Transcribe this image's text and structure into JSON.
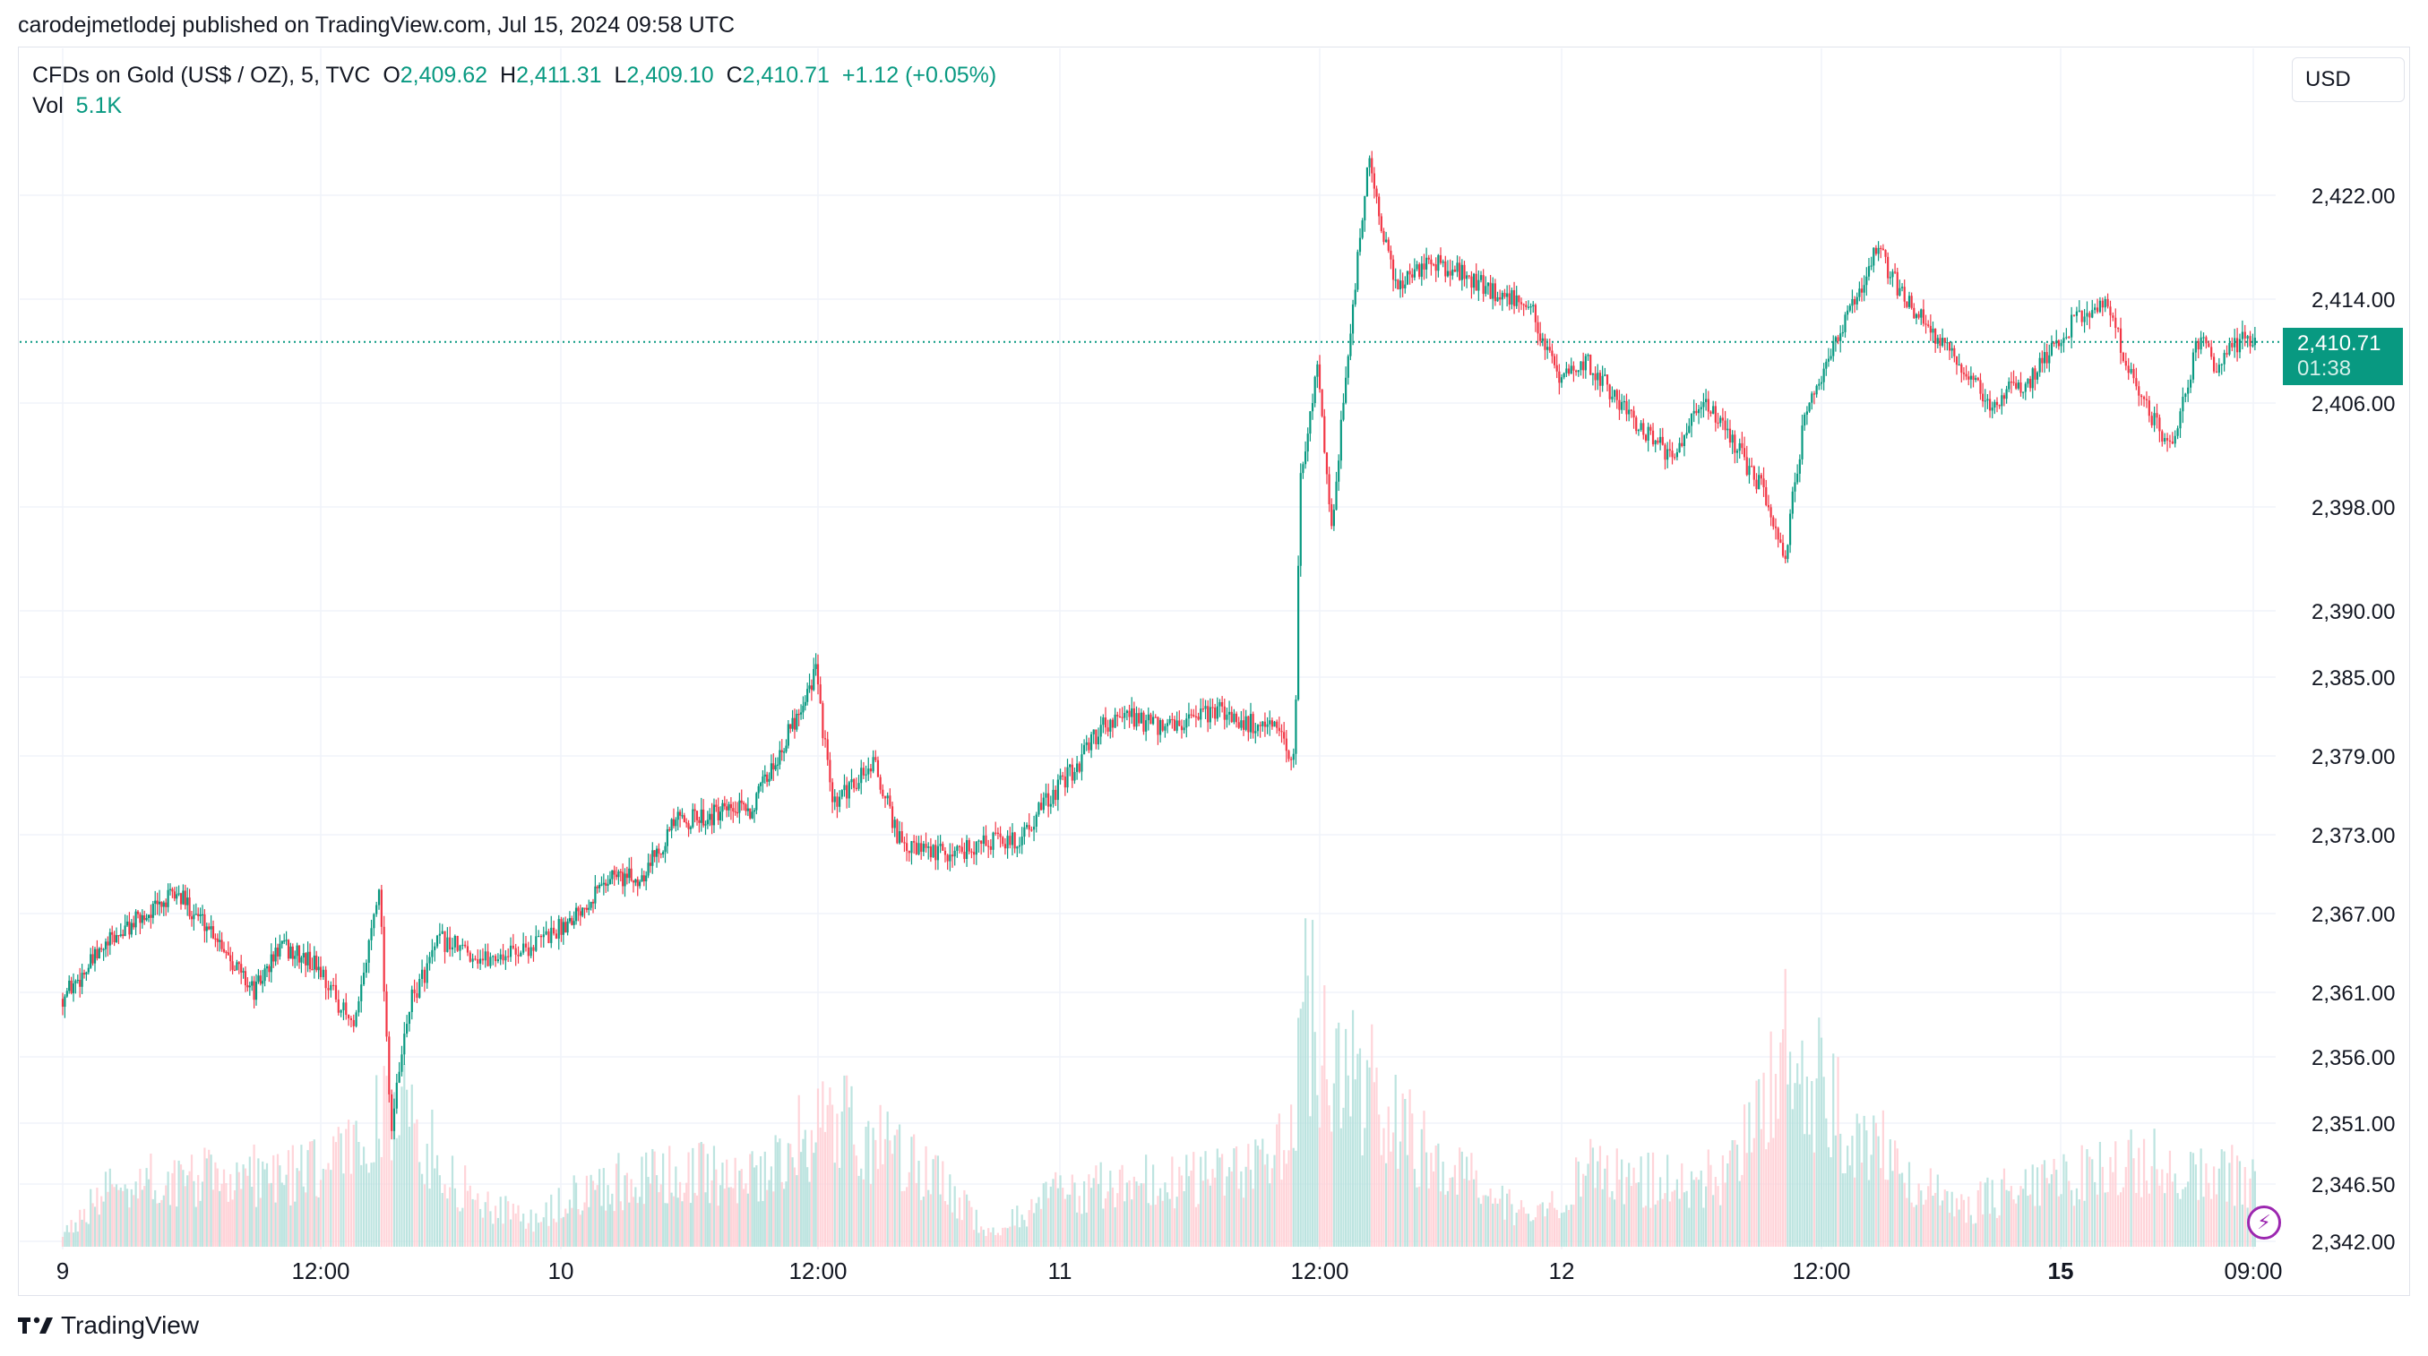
{
  "publisher": "carodejmetlodej published on TradingView.com, Jul 15, 2024 09:58 UTC",
  "legend": {
    "symbol": "CFDs on Gold (US$ / OZ), 5, TVC",
    "open_label": "O",
    "open": "2,409.62",
    "high_label": "H",
    "high": "2,411.31",
    "low_label": "L",
    "low": "2,409.10",
    "close_label": "C",
    "close": "2,410.71",
    "change": "+1.12 (+0.05%)",
    "vol_label": "Vol",
    "vol": "5.1K"
  },
  "currency": "USD",
  "price_badge": {
    "price": "2,410.71",
    "countdown": "01:38"
  },
  "brand": "TradingView",
  "colors": {
    "up": "#089981",
    "down": "#f23645",
    "vol_up": "#b2dfdb",
    "vol_down": "#ffcdd2",
    "grid": "#f0f3fa"
  },
  "chart_data": {
    "type": "candlestick",
    "symbol": "CFDs on Gold (US$ / OZ)",
    "interval": "5",
    "y_ticks": [
      "2,422.00",
      "2,414.00",
      "2,406.00",
      "2,398.00",
      "2,390.00",
      "2,385.00",
      "2,379.00",
      "2,373.00",
      "2,367.00",
      "2,361.00",
      "2,356.00",
      "2,351.00",
      "2,346.50",
      "2,342.00"
    ],
    "x_ticks": [
      {
        "label": "9",
        "bold": false
      },
      {
        "label": "12:00",
        "bold": false
      },
      {
        "label": "10",
        "bold": false
      },
      {
        "label": "12:00",
        "bold": false
      },
      {
        "label": "11",
        "bold": false
      },
      {
        "label": "12:00",
        "bold": false
      },
      {
        "label": "12",
        "bold": false
      },
      {
        "label": "12:00",
        "bold": false
      },
      {
        "label": "15",
        "bold": true
      },
      {
        "label": "09:00",
        "bold": false
      }
    ],
    "last_price": 2410.71,
    "price_path": [
      [
        0,
        2360.5
      ],
      [
        2,
        2365.0
      ],
      [
        3,
        2366.5
      ],
      [
        4.5,
        2368.5
      ],
      [
        6,
        2365.5
      ],
      [
        7.5,
        2361.0
      ],
      [
        8.5,
        2364.5
      ],
      [
        10,
        2363.0
      ],
      [
        11.2,
        2358.0
      ],
      [
        12,
        2369.5
      ],
      [
        12.4,
        2350.5
      ],
      [
        13,
        2360.0
      ],
      [
        14,
        2365.0
      ],
      [
        15.5,
        2363.5
      ],
      [
        17,
        2364.5
      ],
      [
        18,
        2366.0
      ],
      [
        19,
        2368.0
      ],
      [
        20,
        2370.0
      ],
      [
        21,
        2369.5
      ],
      [
        22.5,
        2374.0
      ],
      [
        24,
        2374.5
      ],
      [
        25.5,
        2375.0
      ],
      [
        27,
        2381.0
      ],
      [
        28,
        2385.5
      ],
      [
        28.6,
        2375.0
      ],
      [
        30,
        2378.5
      ],
      [
        31,
        2372.0
      ],
      [
        32.5,
        2371.5
      ],
      [
        34,
        2372.5
      ],
      [
        35,
        2372.5
      ],
      [
        36,
        2375.5
      ],
      [
        37,
        2378.0
      ],
      [
        38,
        2381.5
      ],
      [
        39,
        2382.0
      ],
      [
        40,
        2381.0
      ],
      [
        41,
        2381.5
      ],
      [
        42,
        2382.5
      ],
      [
        43,
        2381.5
      ],
      [
        44,
        2381.0
      ],
      [
        44.7,
        2378.5
      ],
      [
        44.9,
        2400.0
      ],
      [
        45.5,
        2409.0
      ],
      [
        46,
        2396.5
      ],
      [
        46.5,
        2408.0
      ],
      [
        47.3,
        2425.0
      ],
      [
        48.2,
        2415.0
      ],
      [
        49.5,
        2417.0
      ],
      [
        50.5,
        2416.0
      ],
      [
        51.8,
        2414.5
      ],
      [
        53,
        2413.5
      ],
      [
        54,
        2407.5
      ],
      [
        55,
        2409.0
      ],
      [
        56.5,
        2405.0
      ],
      [
        58,
        2401.5
      ],
      [
        59,
        2406.5
      ],
      [
        60,
        2403.0
      ],
      [
        61,
        2399.5
      ],
      [
        61.8,
        2394.0
      ],
      [
        62.5,
        2405.0
      ],
      [
        64,
        2412.5
      ],
      [
        65,
        2418.0
      ],
      [
        66,
        2414.0
      ],
      [
        67.5,
        2410.0
      ],
      [
        69,
        2406.0
      ],
      [
        70.5,
        2408.0
      ],
      [
        72,
        2412.5
      ],
      [
        73,
        2413.5
      ],
      [
        74,
        2406.5
      ],
      [
        75,
        2402.5
      ],
      [
        76,
        2411.5
      ],
      [
        76.5,
        2408.0
      ],
      [
        77,
        2410.7
      ]
    ],
    "volume_profile": [
      [
        0,
        0.05
      ],
      [
        2,
        0.25
      ],
      [
        6,
        0.28
      ],
      [
        10,
        0.3
      ],
      [
        11.5,
        0.45
      ],
      [
        12.4,
        0.6
      ],
      [
        13.5,
        0.4
      ],
      [
        15,
        0.2
      ],
      [
        17,
        0.1
      ],
      [
        19,
        0.25
      ],
      [
        22,
        0.28
      ],
      [
        26,
        0.3
      ],
      [
        28.5,
        0.55
      ],
      [
        30,
        0.4
      ],
      [
        32,
        0.28
      ],
      [
        34,
        0.05
      ],
      [
        36,
        0.2
      ],
      [
        38,
        0.25
      ],
      [
        42,
        0.28
      ],
      [
        44.5,
        0.4
      ],
      [
        45,
        0.95
      ],
      [
        46,
        0.75
      ],
      [
        47.5,
        0.6
      ],
      [
        49,
        0.4
      ],
      [
        51,
        0.25
      ],
      [
        53,
        0.1
      ],
      [
        55,
        0.3
      ],
      [
        58,
        0.25
      ],
      [
        60,
        0.3
      ],
      [
        61.8,
        0.8
      ],
      [
        62.5,
        0.7
      ],
      [
        64,
        0.5
      ],
      [
        66,
        0.3
      ],
      [
        68,
        0.15
      ],
      [
        70,
        0.25
      ],
      [
        72,
        0.28
      ],
      [
        74,
        0.35
      ],
      [
        75,
        0.3
      ],
      [
        77,
        0.28
      ]
    ]
  }
}
